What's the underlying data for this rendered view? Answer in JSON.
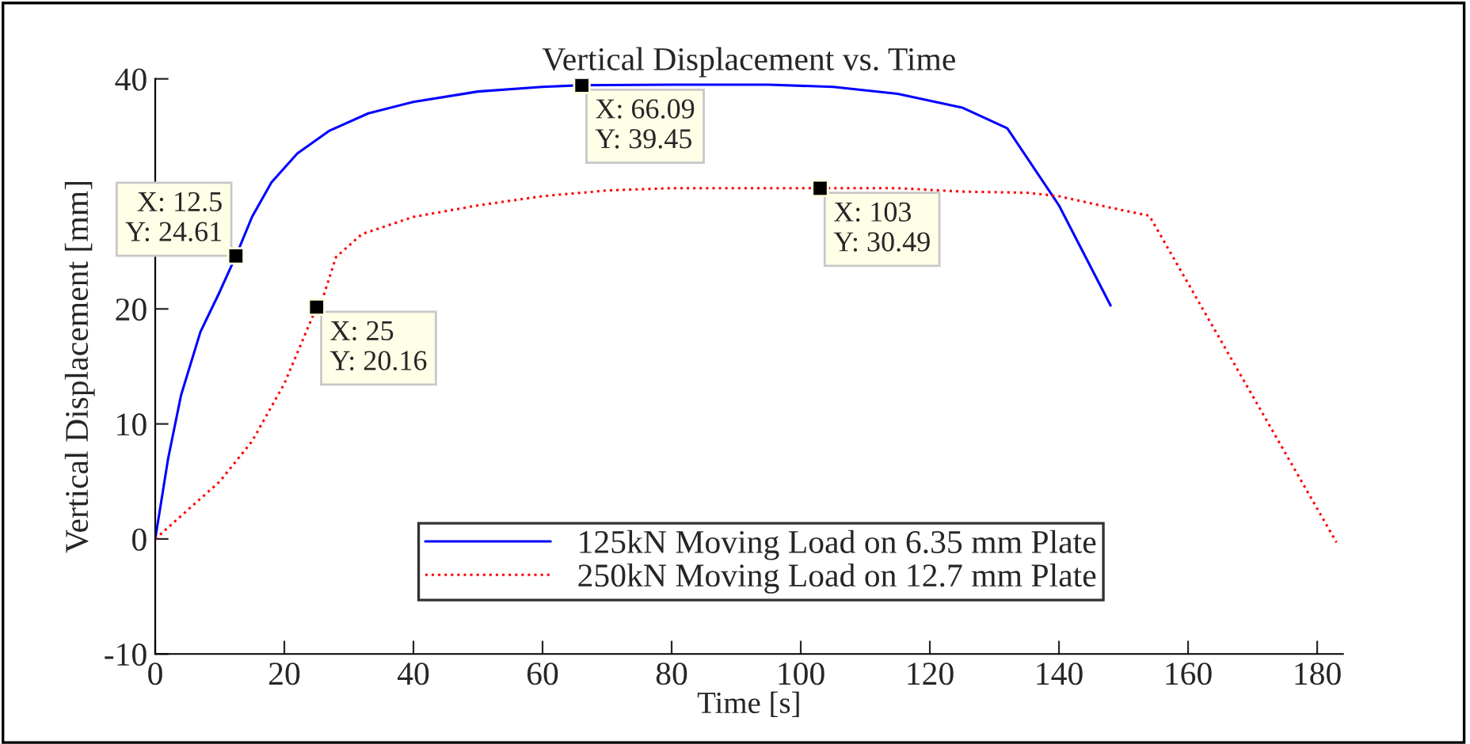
{
  "chart_data": {
    "type": "line",
    "title": "Vertical Displacement vs. Time",
    "xlabel": "Time [s]",
    "ylabel": "Vertical Displacement [mm]",
    "xlim": [
      0,
      184
    ],
    "xticks": [
      0,
      20,
      40,
      60,
      80,
      100,
      120,
      140,
      160,
      180
    ],
    "ylim": [
      -10,
      40
    ],
    "yticks": [
      -10,
      0,
      10,
      20,
      40
    ],
    "grid": false,
    "legend": "bottom",
    "marker": "none",
    "series": [
      {
        "name": "125kN Moving Load on 6.35 mm Plate",
        "color": "#0000ff",
        "line_style": "solid",
        "x": [
          0,
          2,
          4,
          7,
          10,
          12.5,
          15,
          18,
          22,
          27,
          33,
          40,
          50,
          60,
          66.09,
          80,
          95,
          105,
          115,
          125,
          132,
          140,
          148
        ],
        "values": [
          0,
          7,
          12.5,
          18,
          21.5,
          24.61,
          28,
          31,
          33.5,
          35.5,
          37,
          38,
          38.9,
          39.3,
          39.45,
          39.5,
          39.5,
          39.3,
          38.7,
          37.5,
          35.7,
          29,
          20.3
        ]
      },
      {
        "name": "250kN Moving Load on 12.7 mm Plate",
        "color": "#ff0000",
        "line_style": "dotted",
        "x": [
          0,
          5,
          10,
          15,
          20,
          25,
          26,
          28,
          32,
          40,
          50,
          60,
          70,
          80,
          103,
          115,
          125,
          135,
          140,
          148,
          154,
          183
        ],
        "values": [
          0,
          2.5,
          5,
          8.5,
          13.5,
          20.16,
          21,
          24.5,
          26.5,
          28,
          29,
          29.8,
          30.3,
          30.5,
          30.49,
          30.5,
          30.2,
          30.1,
          29.8,
          28.8,
          28.1,
          -0.3
        ]
      }
    ],
    "annotations": [
      {
        "text": "X: 12.5\nY: 24.61",
        "x": 12.5,
        "y": 24.61
      },
      {
        "text": "X: 25\nY: 20.16",
        "x": 25,
        "y": 20.16
      },
      {
        "text": "X: 66.09\nY: 39.45",
        "x": 66.09,
        "y": 39.45
      },
      {
        "text": "X: 103\nY: 30.49",
        "x": 103,
        "y": 30.49
      }
    ]
  }
}
